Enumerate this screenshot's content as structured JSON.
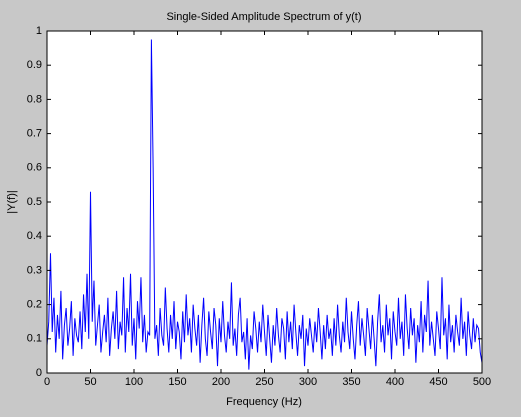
{
  "chart_data": {
    "type": "line",
    "title": "Single-Sided Amplitude Spectrum of y(t)",
    "xlabel": "Frequency (Hz)",
    "ylabel": "|Y(f)|",
    "xlim": [
      0,
      500
    ],
    "ylim": [
      0,
      1
    ],
    "xticks": [
      0,
      50,
      100,
      150,
      200,
      250,
      300,
      350,
      400,
      450,
      500
    ],
    "yticks": [
      0,
      0.1,
      0.2,
      0.3,
      0.4,
      0.5,
      0.6,
      0.7,
      0.8,
      0.9,
      1
    ],
    "grid": false,
    "series": [
      {
        "color": "#0000ff",
        "x": [
          0,
          2,
          4,
          6,
          8,
          10,
          12,
          14,
          16,
          18,
          20,
          22,
          24,
          26,
          28,
          30,
          32,
          34,
          36,
          38,
          40,
          42,
          44,
          46,
          48,
          50,
          52,
          54,
          56,
          58,
          60,
          62,
          64,
          66,
          68,
          70,
          72,
          74,
          76,
          78,
          80,
          82,
          84,
          86,
          88,
          90,
          92,
          94,
          96,
          98,
          100,
          102,
          104,
          106,
          108,
          110,
          112,
          114,
          116,
          118,
          120,
          122,
          124,
          126,
          128,
          130,
          132,
          134,
          136,
          138,
          140,
          142,
          144,
          146,
          148,
          150,
          152,
          154,
          156,
          158,
          160,
          162,
          164,
          166,
          168,
          170,
          172,
          174,
          176,
          178,
          180,
          182,
          184,
          186,
          188,
          190,
          192,
          194,
          196,
          198,
          200,
          202,
          204,
          206,
          208,
          210,
          212,
          214,
          216,
          218,
          220,
          222,
          224,
          226,
          228,
          230,
          232,
          234,
          236,
          238,
          240,
          242,
          244,
          246,
          248,
          250,
          252,
          254,
          256,
          258,
          260,
          262,
          264,
          266,
          268,
          270,
          272,
          274,
          276,
          278,
          280,
          282,
          284,
          286,
          288,
          290,
          292,
          294,
          296,
          298,
          300,
          302,
          304,
          306,
          308,
          310,
          312,
          314,
          316,
          318,
          320,
          322,
          324,
          326,
          328,
          330,
          332,
          334,
          336,
          338,
          340,
          342,
          344,
          346,
          348,
          350,
          352,
          354,
          356,
          358,
          360,
          362,
          364,
          366,
          368,
          370,
          372,
          374,
          376,
          378,
          380,
          382,
          384,
          386,
          388,
          390,
          392,
          394,
          396,
          398,
          400,
          402,
          404,
          406,
          408,
          410,
          412,
          414,
          416,
          418,
          420,
          422,
          424,
          426,
          428,
          430,
          432,
          434,
          436,
          438,
          440,
          442,
          444,
          446,
          448,
          450,
          452,
          454,
          456,
          458,
          460,
          462,
          464,
          466,
          468,
          470,
          472,
          474,
          476,
          478,
          480,
          482,
          484,
          486,
          488,
          490,
          492,
          494,
          496,
          498,
          500
        ],
        "values": [
          0.08,
          0.15,
          0.35,
          0.12,
          0.22,
          0.06,
          0.17,
          0.1,
          0.24,
          0.04,
          0.14,
          0.19,
          0.08,
          0.13,
          0.21,
          0.05,
          0.16,
          0.11,
          0.09,
          0.18,
          0.07,
          0.23,
          0.12,
          0.29,
          0.1,
          0.53,
          0.15,
          0.27,
          0.08,
          0.14,
          0.2,
          0.06,
          0.12,
          0.17,
          0.09,
          0.22,
          0.05,
          0.13,
          0.18,
          0.1,
          0.24,
          0.07,
          0.15,
          0.11,
          0.28,
          0.06,
          0.19,
          0.12,
          0.29,
          0.08,
          0.16,
          0.04,
          0.21,
          0.13,
          0.28,
          0.09,
          0.17,
          0.06,
          0.12,
          0.11,
          0.975,
          0.6,
          0.1,
          0.14,
          0.05,
          0.19,
          0.11,
          0.08,
          0.25,
          0.13,
          0.06,
          0.17,
          0.1,
          0.21,
          0.07,
          0.15,
          0.12,
          0.04,
          0.18,
          0.09,
          0.23,
          0.11,
          0.16,
          0.06,
          0.2,
          0.13,
          0.08,
          0.17,
          0.03,
          0.14,
          0.22,
          0.1,
          0.05,
          0.18,
          0.12,
          0.07,
          0.19,
          0.14,
          0.02,
          0.16,
          0.09,
          0.21,
          0.11,
          0.06,
          0.15,
          0.1,
          0.265,
          0.08,
          0.13,
          0.05,
          0.17,
          0.22,
          0.09,
          0.12,
          0.04,
          0.16,
          0.01,
          0.11,
          0.07,
          0.18,
          0.13,
          0.06,
          0.15,
          0.09,
          0.2,
          0.12,
          0.05,
          0.17,
          0.1,
          0.03,
          0.14,
          0.08,
          0.19,
          0.11,
          0.06,
          0.16,
          0.13,
          0.04,
          0.18,
          0.09,
          0.15,
          0.07,
          0.2,
          0.12,
          0.05,
          0.14,
          0.1,
          0.17,
          0.02,
          0.13,
          0.08,
          0.16,
          0.11,
          0.06,
          0.15,
          0.09,
          0.19,
          0.12,
          0.04,
          0.14,
          0.07,
          0.17,
          0.1,
          0.13,
          0.05,
          0.16,
          0.08,
          0.2,
          0.11,
          0.06,
          0.15,
          0.09,
          0.22,
          0.12,
          0.07,
          0.18,
          0.1,
          0.04,
          0.14,
          0.21,
          0.08,
          0.16,
          0.11,
          0.05,
          0.19,
          0.13,
          0.07,
          0.17,
          0.1,
          0.02,
          0.15,
          0.23,
          0.09,
          0.14,
          0.06,
          0.2,
          0.11,
          0.16,
          0.04,
          0.18,
          0.12,
          0.08,
          0.22,
          0.1,
          0.15,
          0.05,
          0.23,
          0.13,
          0.07,
          0.19,
          0.11,
          0.16,
          0.03,
          0.14,
          0.09,
          0.21,
          0.06,
          0.17,
          0.12,
          0.27,
          0.08,
          0.15,
          0.1,
          0.05,
          0.18,
          0.13,
          0.07,
          0.28,
          0.11,
          0.16,
          0.04,
          0.2,
          0.09,
          0.14,
          0.06,
          0.17,
          0.12,
          0.08,
          0.22,
          0.1,
          0.15,
          0.05,
          0.18,
          0.11,
          0.07,
          0.16,
          0.09,
          0.14,
          0.13,
          0.06,
          0.03
        ]
      }
    ]
  }
}
